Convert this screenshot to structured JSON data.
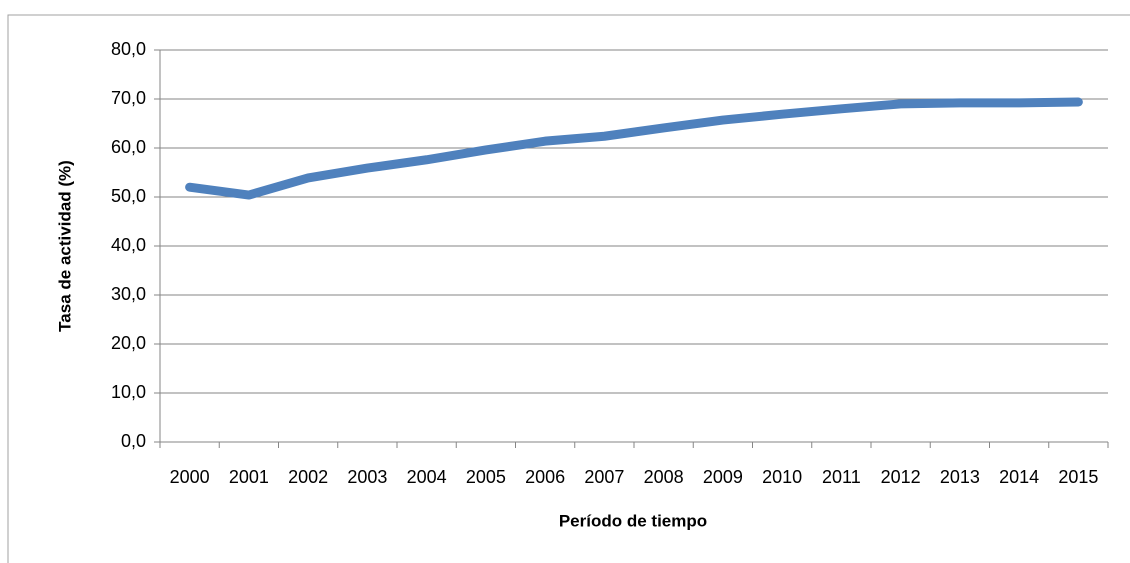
{
  "chart_data": {
    "type": "line",
    "x_label": "Período de tiempo",
    "y_label": "Tasa de actividad (%)",
    "categories": [
      "2000",
      "2001",
      "2002",
      "2003",
      "2004",
      "2005",
      "2006",
      "2007",
      "2008",
      "2009",
      "2010",
      "2011",
      "2012",
      "2013",
      "2014",
      "2015"
    ],
    "values": [
      52.0,
      50.4,
      53.9,
      55.9,
      57.6,
      59.6,
      61.4,
      62.4,
      64.1,
      65.7,
      66.9,
      68.0,
      69.0,
      69.2,
      69.2,
      69.4
    ],
    "color": "#4f81bd",
    "ylim": [
      0,
      80
    ],
    "yticks": [
      {
        "value": 0,
        "label": "0,0"
      },
      {
        "value": 10,
        "label": "10,0"
      },
      {
        "value": 20,
        "label": "20,0"
      },
      {
        "value": 30,
        "label": "30,0"
      },
      {
        "value": 40,
        "label": "40,0"
      },
      {
        "value": 50,
        "label": "50,0"
      },
      {
        "value": 60,
        "label": "60,0"
      },
      {
        "value": 70,
        "label": "70,0"
      },
      {
        "value": 80,
        "label": "80,0"
      }
    ],
    "grid": true
  }
}
